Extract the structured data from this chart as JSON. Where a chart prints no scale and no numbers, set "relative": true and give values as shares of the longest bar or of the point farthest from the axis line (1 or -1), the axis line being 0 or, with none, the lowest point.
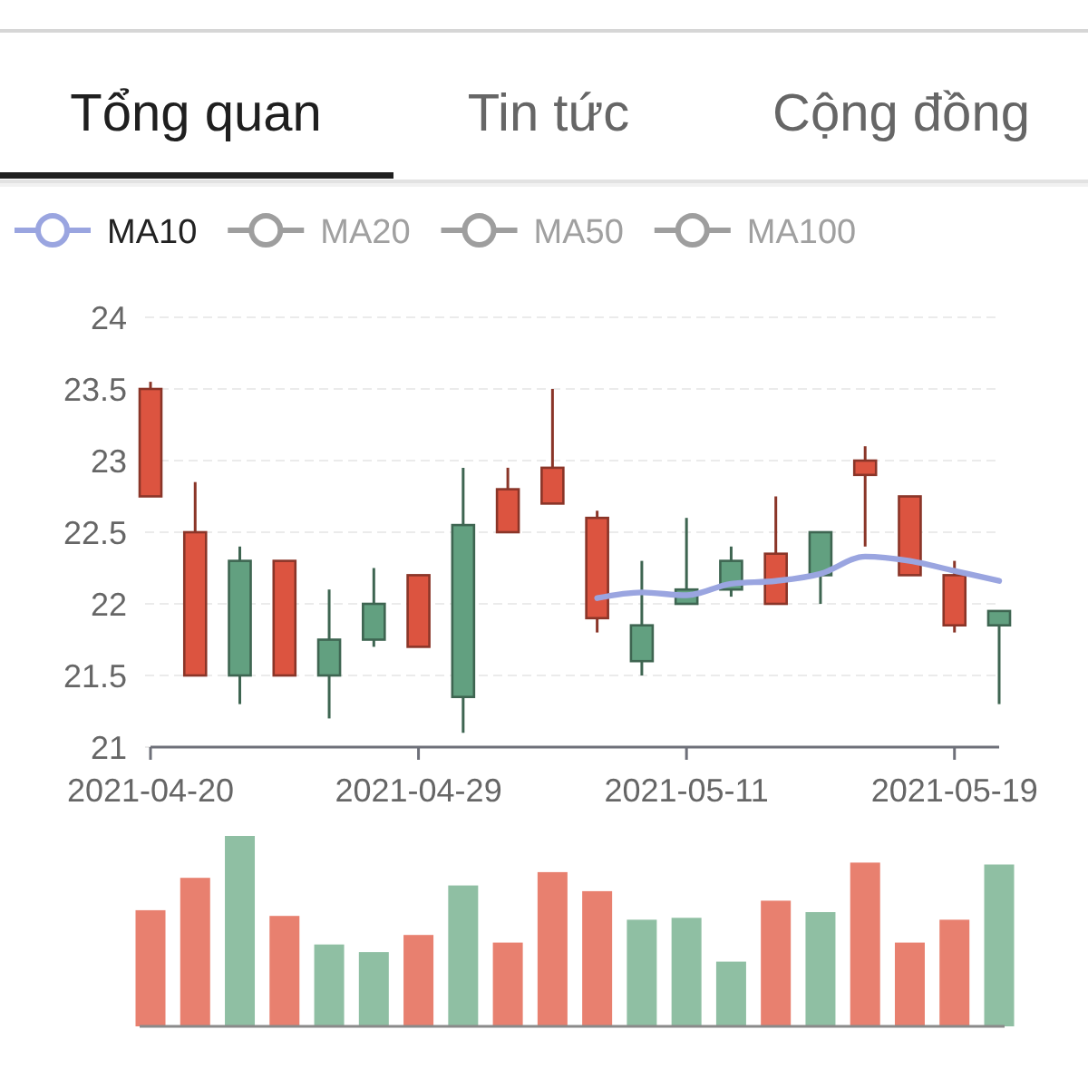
{
  "chart_data": [
    {
      "type": "candlestick",
      "annotations": [
        "Tổng quan",
        "Tin tức",
        "Cộng đồng"
      ],
      "categories": [
        "2021-04-20",
        null,
        null,
        null,
        null,
        null,
        "2021-04-29",
        null,
        null,
        null,
        null,
        null,
        "2021-05-11",
        null,
        null,
        null,
        null,
        null,
        "2021-05-19",
        null
      ],
      "ohlc": [
        [
          23.5,
          23.55,
          22.75,
          22.75
        ],
        [
          22.5,
          22.85,
          21.5,
          21.5
        ],
        [
          21.5,
          22.4,
          21.3,
          22.3
        ],
        [
          22.3,
          22.3,
          21.5,
          21.5
        ],
        [
          21.5,
          22.1,
          21.2,
          21.75
        ],
        [
          21.75,
          22.25,
          21.7,
          22.0
        ],
        [
          22.2,
          22.2,
          21.7,
          21.7
        ],
        [
          21.35,
          22.95,
          21.1,
          22.55
        ],
        [
          22.8,
          22.95,
          22.5,
          22.5
        ],
        [
          22.95,
          23.5,
          22.7,
          22.7
        ],
        [
          22.6,
          22.65,
          21.8,
          21.9
        ],
        [
          21.6,
          22.3,
          21.5,
          21.85
        ],
        [
          22.0,
          22.6,
          22.0,
          22.1
        ],
        [
          22.1,
          22.4,
          22.05,
          22.3
        ],
        [
          22.35,
          22.75,
          22.0,
          22.0
        ],
        [
          22.2,
          22.5,
          22.0,
          22.5
        ],
        [
          23.0,
          23.1,
          22.4,
          22.9
        ],
        [
          22.75,
          22.75,
          22.2,
          22.2
        ],
        [
          22.2,
          22.3,
          21.8,
          21.85
        ],
        [
          21.85,
          21.95,
          21.3,
          21.95
        ]
      ],
      "colors": [
        "#dc5440",
        "#dc5440",
        "#62a080",
        "#dc5440",
        "#62a080",
        "#62a080",
        "#dc5440",
        "#62a080",
        "#dc5440",
        "#dc5440",
        "#dc5440",
        "#62a080",
        "#62a080",
        "#62a080",
        "#dc5440",
        "#62a080",
        "#dc5440",
        "#dc5440",
        "#dc5440",
        "#62a080"
      ],
      "series": [
        {
          "name": "MA10",
          "type": "line",
          "color": "#9aa5e0",
          "values": [
            null,
            null,
            null,
            null,
            null,
            null,
            null,
            null,
            null,
            null,
            22.04,
            22.08,
            22.06,
            22.14,
            22.16,
            22.21,
            22.33,
            22.3,
            22.23,
            22.16
          ]
        },
        {
          "name": "MA20",
          "type": "line",
          "color": "#9e9e9e",
          "values": [
            null,
            null,
            null,
            null,
            null,
            null,
            null,
            null,
            null,
            null,
            null,
            null,
            null,
            null,
            null,
            null,
            null,
            null,
            null,
            null
          ]
        },
        {
          "name": "MA50",
          "type": "line",
          "color": "#9e9e9e",
          "values": [
            null,
            null,
            null,
            null,
            null,
            null,
            null,
            null,
            null,
            null,
            null,
            null,
            null,
            null,
            null,
            null,
            null,
            null,
            null,
            null
          ]
        },
        {
          "name": "MA100",
          "type": "line",
          "color": "#9e9e9e",
          "values": [
            null,
            null,
            null,
            null,
            null,
            null,
            null,
            null,
            null,
            null,
            null,
            null,
            null,
            null,
            null,
            null,
            null,
            null,
            null,
            null
          ]
        }
      ],
      "ylim": [
        21,
        24
      ],
      "yticks": [
        21,
        21.5,
        22,
        22.5,
        23,
        23.5,
        24
      ],
      "grid": "y",
      "legend": "top left"
    },
    {
      "type": "bar",
      "categories": [
        null,
        null,
        null,
        null,
        null,
        null,
        null,
        null,
        null,
        null,
        null,
        null,
        null,
        null,
        null,
        null,
        null,
        null,
        null,
        null
      ],
      "values": [
        0.61,
        0.78,
        1,
        0.58,
        0.43,
        0.39,
        0.48,
        0.74,
        0.44,
        0.81,
        0.71,
        0.56,
        0.57,
        0.34,
        0.66,
        0.6,
        0.86,
        0.44,
        0.56,
        0.85
      ],
      "colors": [
        "#e8806f",
        "#e8806f",
        "#8fbfa3",
        "#e8806f",
        "#8fbfa3",
        "#8fbfa3",
        "#e8806f",
        "#8fbfa3",
        "#e8806f",
        "#e8806f",
        "#e8806f",
        "#8fbfa3",
        "#8fbfa3",
        "#8fbfa3",
        "#e8806f",
        "#8fbfa3",
        "#e8806f",
        "#e8806f",
        "#e8806f",
        "#8fbfa3"
      ],
      "relative": true
    }
  ]
}
